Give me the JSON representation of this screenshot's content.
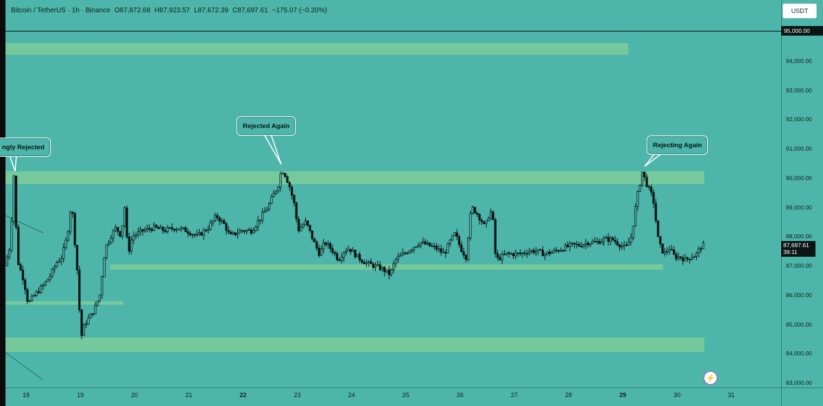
{
  "header": {
    "symbol": "Bitcoin / TetherUS · 1h · Binance",
    "open": "O87,872.68",
    "high": "H87,923.57",
    "low": "L87,672.39",
    "close": "C87,697.61",
    "change": "−175.07 (−0.20%)"
  },
  "currency_button": {
    "label": "USDT"
  },
  "price_axis": {
    "ticks": [
      "95,000.00",
      "94,000.00",
      "93,000.00",
      "92,000.00",
      "91,000.00",
      "90,000.00",
      "89,000.00",
      "88,000.00",
      "87,000.00",
      "86,000.00",
      "85,000.00",
      "84,000.00",
      "83,000.00"
    ],
    "highlighted_price": "95,000.00",
    "current_price": "87,697.61",
    "countdown": "38:11"
  },
  "time_axis": {
    "ticks": [
      {
        "label": "18",
        "bold": false
      },
      {
        "label": "19",
        "bold": false
      },
      {
        "label": "20",
        "bold": false
      },
      {
        "label": "21",
        "bold": false
      },
      {
        "label": "22",
        "bold": true
      },
      {
        "label": "23",
        "bold": false
      },
      {
        "label": "24",
        "bold": false
      },
      {
        "label": "25",
        "bold": false
      },
      {
        "label": "26",
        "bold": false
      },
      {
        "label": "27",
        "bold": false
      },
      {
        "label": "28",
        "bold": false
      },
      {
        "label": "29",
        "bold": true
      },
      {
        "label": "30",
        "bold": false
      },
      {
        "label": "31",
        "bold": false
      }
    ]
  },
  "annotations": {
    "callout_1": "ngly Rejected",
    "callout_2": "Rejected Again",
    "callout_3": "Rejecting Again"
  },
  "zones": [
    {
      "from": 94200,
      "to": 94600,
      "start_day": 17.6,
      "end_day": 29.1
    },
    {
      "from": 89780,
      "to": 90220,
      "start_day": 17.6,
      "end_day": 30.5
    },
    {
      "from": 86850,
      "to": 87050,
      "start_day": 19.55,
      "end_day": 29.75
    },
    {
      "from": 85680,
      "to": 85780,
      "start_day": 17.6,
      "end_day": 19.8
    },
    {
      "from": 84050,
      "to": 84550,
      "start_day": 17.6,
      "end_day": 30.5
    }
  ],
  "chart_data": {
    "type": "candlestick",
    "symbol": "Bitcoin / TetherUS",
    "interval": "1h",
    "x_unit": "day of month",
    "ylim": [
      82700,
      95800
    ],
    "path": [
      [
        17.65,
        87000
      ],
      [
        17.75,
        87700
      ],
      [
        17.82,
        90200
      ],
      [
        17.88,
        87200
      ],
      [
        18.0,
        86500
      ],
      [
        18.08,
        85700
      ],
      [
        18.2,
        86000
      ],
      [
        18.35,
        86300
      ],
      [
        18.5,
        86700
      ],
      [
        18.6,
        87100
      ],
      [
        18.7,
        87300
      ],
      [
        18.8,
        88000
      ],
      [
        18.88,
        89200
      ],
      [
        18.95,
        87600
      ],
      [
        19.0,
        86500
      ],
      [
        19.05,
        84500
      ],
      [
        19.12,
        85000
      ],
      [
        19.2,
        85200
      ],
      [
        19.3,
        85500
      ],
      [
        19.4,
        86000
      ],
      [
        19.5,
        87600
      ],
      [
        19.6,
        88000
      ],
      [
        19.7,
        88300
      ],
      [
        19.8,
        88000
      ],
      [
        19.85,
        89200
      ],
      [
        19.92,
        87400
      ],
      [
        20.0,
        88000
      ],
      [
        20.2,
        88200
      ],
      [
        20.4,
        88300
      ],
      [
        20.6,
        88200
      ],
      [
        20.8,
        88300
      ],
      [
        21.0,
        88200
      ],
      [
        21.2,
        88000
      ],
      [
        21.4,
        88300
      ],
      [
        21.55,
        88700
      ],
      [
        21.7,
        88400
      ],
      [
        21.8,
        88000
      ],
      [
        22.0,
        88200
      ],
      [
        22.2,
        88200
      ],
      [
        22.35,
        88600
      ],
      [
        22.5,
        89000
      ],
      [
        22.6,
        89400
      ],
      [
        22.7,
        89800
      ],
      [
        22.75,
        90300
      ],
      [
        22.82,
        90100
      ],
      [
        22.9,
        89700
      ],
      [
        23.0,
        89000
      ],
      [
        23.05,
        88200
      ],
      [
        23.2,
        88500
      ],
      [
        23.35,
        87800
      ],
      [
        23.45,
        87400
      ],
      [
        23.55,
        87800
      ],
      [
        23.7,
        87500
      ],
      [
        23.8,
        87200
      ],
      [
        23.9,
        87500
      ],
      [
        24.0,
        87600
      ],
      [
        24.15,
        87300
      ],
      [
        24.3,
        87100
      ],
      [
        24.45,
        87000
      ],
      [
        24.6,
        86900
      ],
      [
        24.75,
        86700
      ],
      [
        24.85,
        87200
      ],
      [
        25.0,
        87400
      ],
      [
        25.15,
        87600
      ],
      [
        25.3,
        87800
      ],
      [
        25.45,
        87700
      ],
      [
        25.6,
        87600
      ],
      [
        25.75,
        87400
      ],
      [
        25.85,
        87800
      ],
      [
        25.95,
        88100
      ],
      [
        26.05,
        87600
      ],
      [
        26.15,
        87300
      ],
      [
        26.25,
        89000
      ],
      [
        26.35,
        88800
      ],
      [
        26.45,
        88500
      ],
      [
        26.5,
        88300
      ],
      [
        26.6,
        88900
      ],
      [
        26.65,
        88500
      ],
      [
        26.7,
        87200
      ],
      [
        26.8,
        87300
      ],
      [
        26.9,
        87400
      ],
      [
        27.0,
        87400
      ],
      [
        27.15,
        87400
      ],
      [
        27.3,
        87500
      ],
      [
        27.45,
        87500
      ],
      [
        27.6,
        87400
      ],
      [
        27.8,
        87500
      ],
      [
        27.95,
        87600
      ],
      [
        28.1,
        87700
      ],
      [
        28.25,
        87700
      ],
      [
        28.4,
        87800
      ],
      [
        28.55,
        87800
      ],
      [
        28.7,
        87900
      ],
      [
        28.85,
        87900
      ],
      [
        29.0,
        87700
      ],
      [
        29.1,
        87600
      ],
      [
        29.2,
        88000
      ],
      [
        29.3,
        89300
      ],
      [
        29.4,
        90200
      ],
      [
        29.5,
        89700
      ],
      [
        29.6,
        89300
      ],
      [
        29.7,
        87800
      ],
      [
        29.8,
        87400
      ],
      [
        29.9,
        87600
      ],
      [
        30.0,
        87300
      ],
      [
        30.1,
        87300
      ],
      [
        30.2,
        87200
      ],
      [
        30.3,
        87300
      ],
      [
        30.4,
        87400
      ],
      [
        30.5,
        87700
      ]
    ]
  }
}
